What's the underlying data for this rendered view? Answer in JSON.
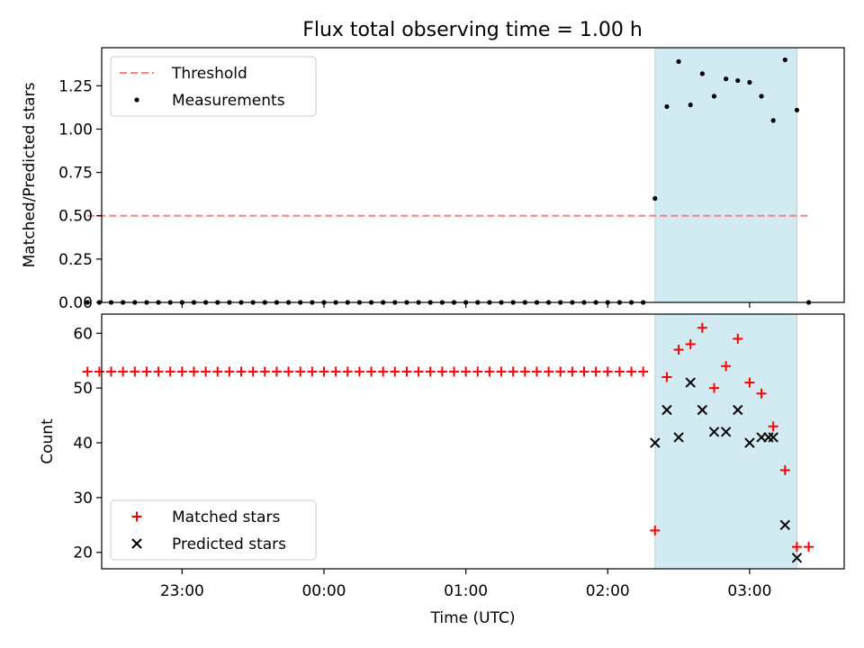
{
  "figure": {
    "title": "Flux total observing time = 1.00 h"
  },
  "colors": {
    "threshold": "#ff7f7f",
    "measurement": "#000000",
    "matched": "#ff0000",
    "predicted": "#000000",
    "highlight_fill": "#add8e6"
  },
  "chart_data": [
    {
      "type": "scatter",
      "title": "Flux total observing time = 1.00 h",
      "xlabel": "",
      "ylabel": "Matched/Predicted stars",
      "xlim": [
        "22:26",
        "03:40"
      ],
      "ylim": [
        0,
        1.47
      ],
      "xticks": [
        "23:00",
        "00:00",
        "01:00",
        "02:00",
        "03:00"
      ],
      "yticks": [
        0.0,
        0.25,
        0.5,
        0.75,
        1.0,
        1.25
      ],
      "ytick_labels": [
        "0.00",
        "0.25",
        "0.50",
        "0.75",
        "1.00",
        "1.25"
      ],
      "legend": {
        "placement": "top-left",
        "entries": [
          "Threshold",
          "Measurements"
        ]
      },
      "highlight_span": [
        "02:20",
        "03:20"
      ],
      "threshold": {
        "name": "Threshold",
        "value": 0.5,
        "x_range": [
          "22:20",
          "03:25"
        ]
      },
      "series": [
        {
          "name": "Measurements",
          "x": [
            "22:20",
            "22:25",
            "22:30",
            "22:35",
            "22:40",
            "22:45",
            "22:50",
            "22:55",
            "23:00",
            "23:05",
            "23:10",
            "23:15",
            "23:20",
            "23:25",
            "23:30",
            "23:35",
            "23:40",
            "23:45",
            "23:50",
            "23:55",
            "00:00",
            "00:05",
            "00:10",
            "00:15",
            "00:20",
            "00:25",
            "00:30",
            "00:35",
            "00:40",
            "00:45",
            "00:50",
            "00:55",
            "01:00",
            "01:05",
            "01:10",
            "01:15",
            "01:20",
            "01:25",
            "01:30",
            "01:35",
            "01:40",
            "01:45",
            "01:50",
            "01:55",
            "02:00",
            "02:05",
            "02:10",
            "02:15",
            "02:20",
            "02:25",
            "02:30",
            "02:35",
            "02:40",
            "02:45",
            "02:50",
            "02:55",
            "03:00",
            "03:05",
            "03:10",
            "03:15",
            "03:20",
            "03:25"
          ],
          "y": [
            0,
            0,
            0,
            0,
            0,
            0,
            0,
            0,
            0,
            0,
            0,
            0,
            0,
            0,
            0,
            0,
            0,
            0,
            0,
            0,
            0,
            0,
            0,
            0,
            0,
            0,
            0,
            0,
            0,
            0,
            0,
            0,
            0,
            0,
            0,
            0,
            0,
            0,
            0,
            0,
            0,
            0,
            0,
            0,
            0,
            0,
            0,
            0,
            0.6,
            1.13,
            1.39,
            1.14,
            1.32,
            1.19,
            1.29,
            1.28,
            1.27,
            1.19,
            1.05,
            1.4,
            1.11,
            0
          ]
        }
      ]
    },
    {
      "type": "scatter",
      "title": "",
      "xlabel": "Time (UTC)",
      "ylabel": "Count",
      "xlim": [
        "22:26",
        "03:40"
      ],
      "ylim": [
        17,
        63.5
      ],
      "xticks": [
        "23:00",
        "00:00",
        "01:00",
        "02:00",
        "03:00"
      ],
      "yticks": [
        20,
        30,
        40,
        50,
        60
      ],
      "ytick_labels": [
        "20",
        "30",
        "40",
        "50",
        "60"
      ],
      "legend": {
        "placement": "bottom-left",
        "entries": [
          "Matched stars",
          "Predicted stars"
        ]
      },
      "highlight_span": [
        "02:20",
        "03:20"
      ],
      "series": [
        {
          "name": "Matched stars",
          "marker": "+",
          "x": [
            "22:20",
            "22:25",
            "22:30",
            "22:35",
            "22:40",
            "22:45",
            "22:50",
            "22:55",
            "23:00",
            "23:05",
            "23:10",
            "23:15",
            "23:20",
            "23:25",
            "23:30",
            "23:35",
            "23:40",
            "23:45",
            "23:50",
            "23:55",
            "00:00",
            "00:05",
            "00:10",
            "00:15",
            "00:20",
            "00:25",
            "00:30",
            "00:35",
            "00:40",
            "00:45",
            "00:50",
            "00:55",
            "01:00",
            "01:05",
            "01:10",
            "01:15",
            "01:20",
            "01:25",
            "01:30",
            "01:35",
            "01:40",
            "01:45",
            "01:50",
            "01:55",
            "02:00",
            "02:05",
            "02:10",
            "02:15",
            "02:20",
            "02:25",
            "02:30",
            "02:35",
            "02:40",
            "02:45",
            "02:50",
            "02:55",
            "03:00",
            "03:05",
            "03:10",
            "03:15",
            "03:20",
            "03:25"
          ],
          "y": [
            53,
            53,
            53,
            53,
            53,
            53,
            53,
            53,
            53,
            53,
            53,
            53,
            53,
            53,
            53,
            53,
            53,
            53,
            53,
            53,
            53,
            53,
            53,
            53,
            53,
            53,
            53,
            53,
            53,
            53,
            53,
            53,
            53,
            53,
            53,
            53,
            53,
            53,
            53,
            53,
            53,
            53,
            53,
            53,
            53,
            53,
            53,
            53,
            24,
            52,
            57,
            58,
            61,
            50,
            54,
            59,
            51,
            49,
            43,
            35,
            21,
            21
          ]
        },
        {
          "name": "Predicted stars",
          "marker": "x",
          "x": [
            "02:20",
            "02:25",
            "02:30",
            "02:35",
            "02:40",
            "02:45",
            "02:50",
            "02:55",
            "03:00",
            "03:05",
            "03:08",
            "03:10",
            "03:15",
            "03:20"
          ],
          "y": [
            40,
            46,
            41,
            51,
            46,
            42,
            42,
            46,
            40,
            41,
            41,
            41,
            25,
            19
          ]
        }
      ]
    }
  ]
}
